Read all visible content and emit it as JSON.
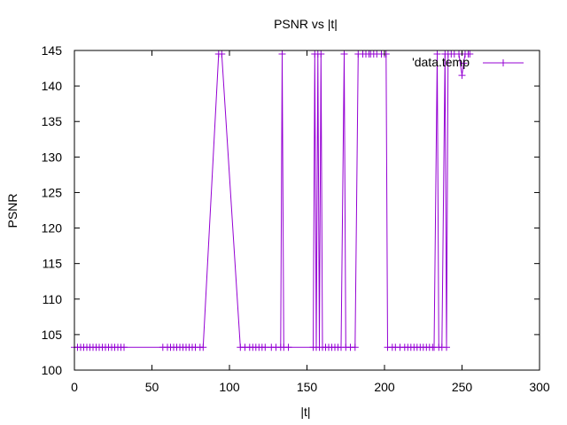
{
  "chart_data": {
    "type": "line",
    "title": "PSNR vs |t|",
    "xlabel": "|t|",
    "ylabel": "PSNR",
    "xlim": [
      0,
      300
    ],
    "ylim": [
      100,
      145
    ],
    "x_ticks": [
      "0",
      "50",
      "100",
      "150",
      "200",
      "250",
      "300"
    ],
    "y_ticks": [
      "100",
      "105",
      "110",
      "115",
      "120",
      "125",
      "130",
      "135",
      "140",
      "145"
    ],
    "grid": false,
    "legend_position": "top-right",
    "series": [
      {
        "name": "'data.temp",
        "color": "#9400d3",
        "marker": "plus",
        "points": [
          [
            0,
            103.2
          ],
          [
            2,
            103.2
          ],
          [
            4,
            103.2
          ],
          [
            6,
            103.2
          ],
          [
            8,
            103.2
          ],
          [
            10,
            103.2
          ],
          [
            12,
            103.2
          ],
          [
            14,
            103.2
          ],
          [
            16,
            103.2
          ],
          [
            18,
            103.2
          ],
          [
            20,
            103.2
          ],
          [
            22,
            103.2
          ],
          [
            24,
            103.2
          ],
          [
            26,
            103.2
          ],
          [
            28,
            103.2
          ],
          [
            30,
            103.2
          ],
          [
            32,
            103.2
          ],
          [
            57,
            103.2
          ],
          [
            60,
            103.2
          ],
          [
            62,
            103.2
          ],
          [
            64,
            103.2
          ],
          [
            66,
            103.2
          ],
          [
            68,
            103.2
          ],
          [
            70,
            103.2
          ],
          [
            72,
            103.2
          ],
          [
            74,
            103.2
          ],
          [
            76,
            103.2
          ],
          [
            78,
            103.2
          ],
          [
            81,
            103.2
          ],
          [
            83,
            103.2
          ],
          [
            93,
            144.5
          ],
          [
            95,
            144.5
          ],
          [
            107,
            103.2
          ],
          [
            110,
            103.2
          ],
          [
            113,
            103.2
          ],
          [
            115,
            103.2
          ],
          [
            117,
            103.2
          ],
          [
            119,
            103.2
          ],
          [
            121,
            103.2
          ],
          [
            123,
            103.2
          ],
          [
            127,
            103.2
          ],
          [
            130,
            103.2
          ],
          [
            133,
            103.2
          ],
          [
            134,
            144.5
          ],
          [
            135,
            103.2
          ],
          [
            138,
            103.2
          ],
          [
            154,
            103.2
          ],
          [
            155,
            144.5
          ],
          [
            156,
            103.2
          ],
          [
            157,
            144.5
          ],
          [
            158,
            103.2
          ],
          [
            159,
            144.5
          ],
          [
            160,
            103.2
          ],
          [
            162,
            103.2
          ],
          [
            164,
            103.2
          ],
          [
            166,
            103.2
          ],
          [
            168,
            103.2
          ],
          [
            170,
            103.2
          ],
          [
            172,
            103.2
          ],
          [
            174,
            144.5
          ],
          [
            175,
            103.2
          ],
          [
            178,
            103.2
          ],
          [
            181,
            103.2
          ],
          [
            183,
            144.5
          ],
          [
            186,
            144.5
          ],
          [
            188,
            144.5
          ],
          [
            190,
            144.5
          ],
          [
            191,
            144.5
          ],
          [
            193,
            144.5
          ],
          [
            195,
            144.5
          ],
          [
            198,
            144.5
          ],
          [
            200,
            144.5
          ],
          [
            201,
            144.5
          ],
          [
            202,
            103.2
          ],
          [
            205,
            103.2
          ],
          [
            207,
            103.2
          ],
          [
            210,
            103.2
          ],
          [
            213,
            103.2
          ],
          [
            215,
            103.2
          ],
          [
            217,
            103.2
          ],
          [
            219,
            103.2
          ],
          [
            221,
            103.2
          ],
          [
            223,
            103.2
          ],
          [
            225,
            103.2
          ],
          [
            227,
            103.2
          ],
          [
            229,
            103.2
          ],
          [
            231,
            103.2
          ],
          [
            232,
            103.2
          ],
          [
            234,
            144.5
          ],
          [
            235,
            103.2
          ],
          [
            237,
            103.2
          ],
          [
            239,
            144.5
          ],
          [
            240,
            103.2
          ],
          [
            241,
            144.5
          ],
          [
            243,
            144.5
          ],
          [
            245,
            144.5
          ],
          [
            248,
            144.5
          ],
          [
            250,
            141.5
          ],
          [
            251,
            143.2
          ],
          [
            252,
            144.5
          ],
          [
            254,
            144.5
          ],
          [
            255,
            144.5
          ]
        ]
      }
    ]
  }
}
